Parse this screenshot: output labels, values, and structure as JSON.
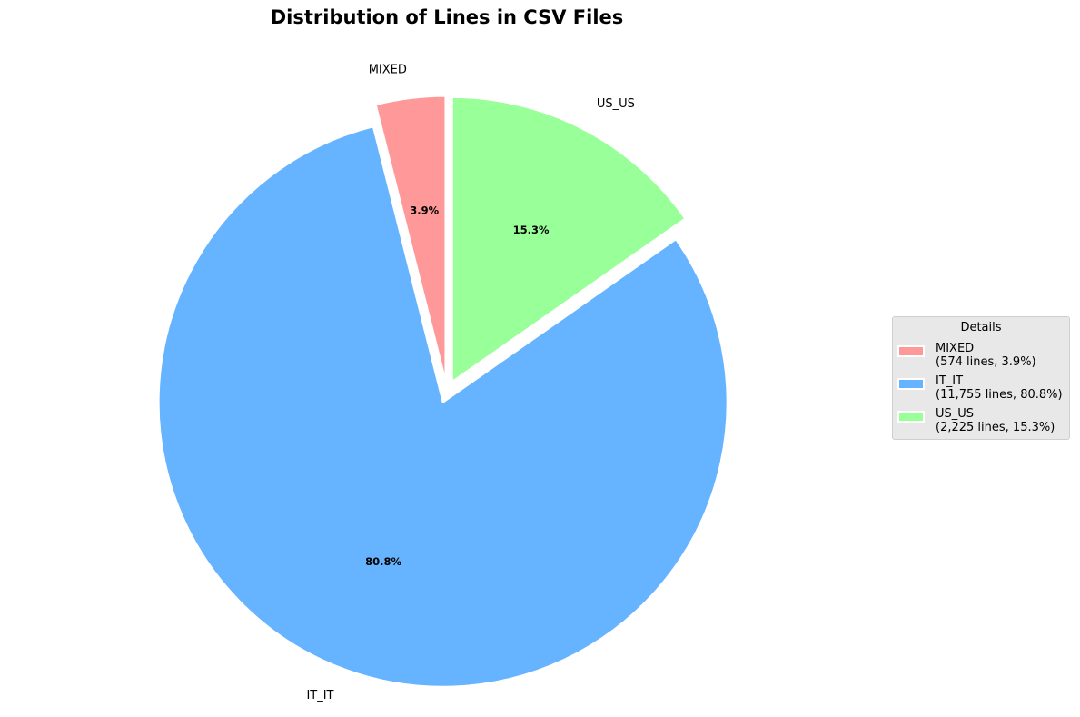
{
  "chart_data": {
    "type": "pie",
    "title": "Distribution of Lines in CSV Files",
    "labels": [
      "MIXED",
      "IT_IT",
      "US_US"
    ],
    "values": [
      574,
      11755,
      2225
    ],
    "percent_labels": [
      "3.9%",
      "80.8%",
      "15.3%"
    ],
    "colors": [
      "#ff9999",
      "#66b3ff",
      "#99ff99"
    ],
    "start_angle_deg": 90,
    "direction": "counterclockwise",
    "exploded": true,
    "legend": {
      "title": "Details",
      "placement": "right",
      "entries": [
        {
          "line1": "MIXED",
          "line2": "(574 lines, 3.9%)"
        },
        {
          "line1": "IT_IT",
          "line2": "(11,755 lines, 80.8%)"
        },
        {
          "line1": "US_US",
          "line2": "(2,225 lines, 15.3%)"
        }
      ]
    }
  }
}
